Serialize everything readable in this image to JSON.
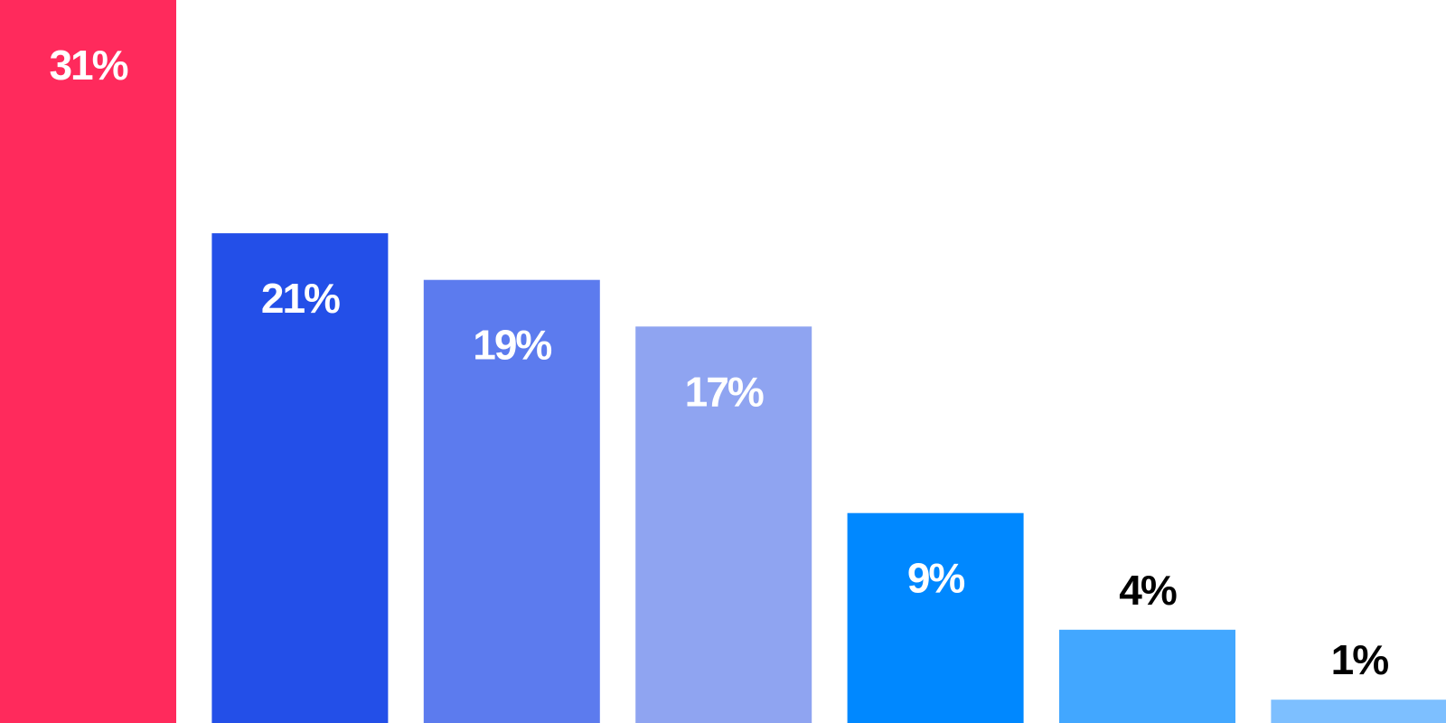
{
  "chart_data": {
    "type": "bar",
    "categories": [
      "",
      "",
      "",
      "",
      "",
      "",
      ""
    ],
    "values": [
      31,
      21,
      19,
      17,
      9,
      4,
      1
    ],
    "labels": [
      "31%",
      "21%",
      "19%",
      "17%",
      "9%",
      "4%",
      "1%"
    ],
    "colors": [
      "#ff2a5c",
      "#234fe8",
      "#5c7bee",
      "#8fa4f1",
      "#0088ff",
      "#42a7ff",
      "#7dbfff"
    ],
    "label_colors": [
      "#ffffff",
      "#ffffff",
      "#ffffff",
      "#ffffff",
      "#ffffff",
      "#000000",
      "#000000"
    ],
    "label_position": [
      "inside",
      "inside",
      "inside",
      "inside",
      "inside",
      "above",
      "above"
    ],
    "title": "",
    "xlabel": "",
    "ylabel": "",
    "ylim": [
      0,
      31
    ],
    "grid": false,
    "legend": "none"
  }
}
